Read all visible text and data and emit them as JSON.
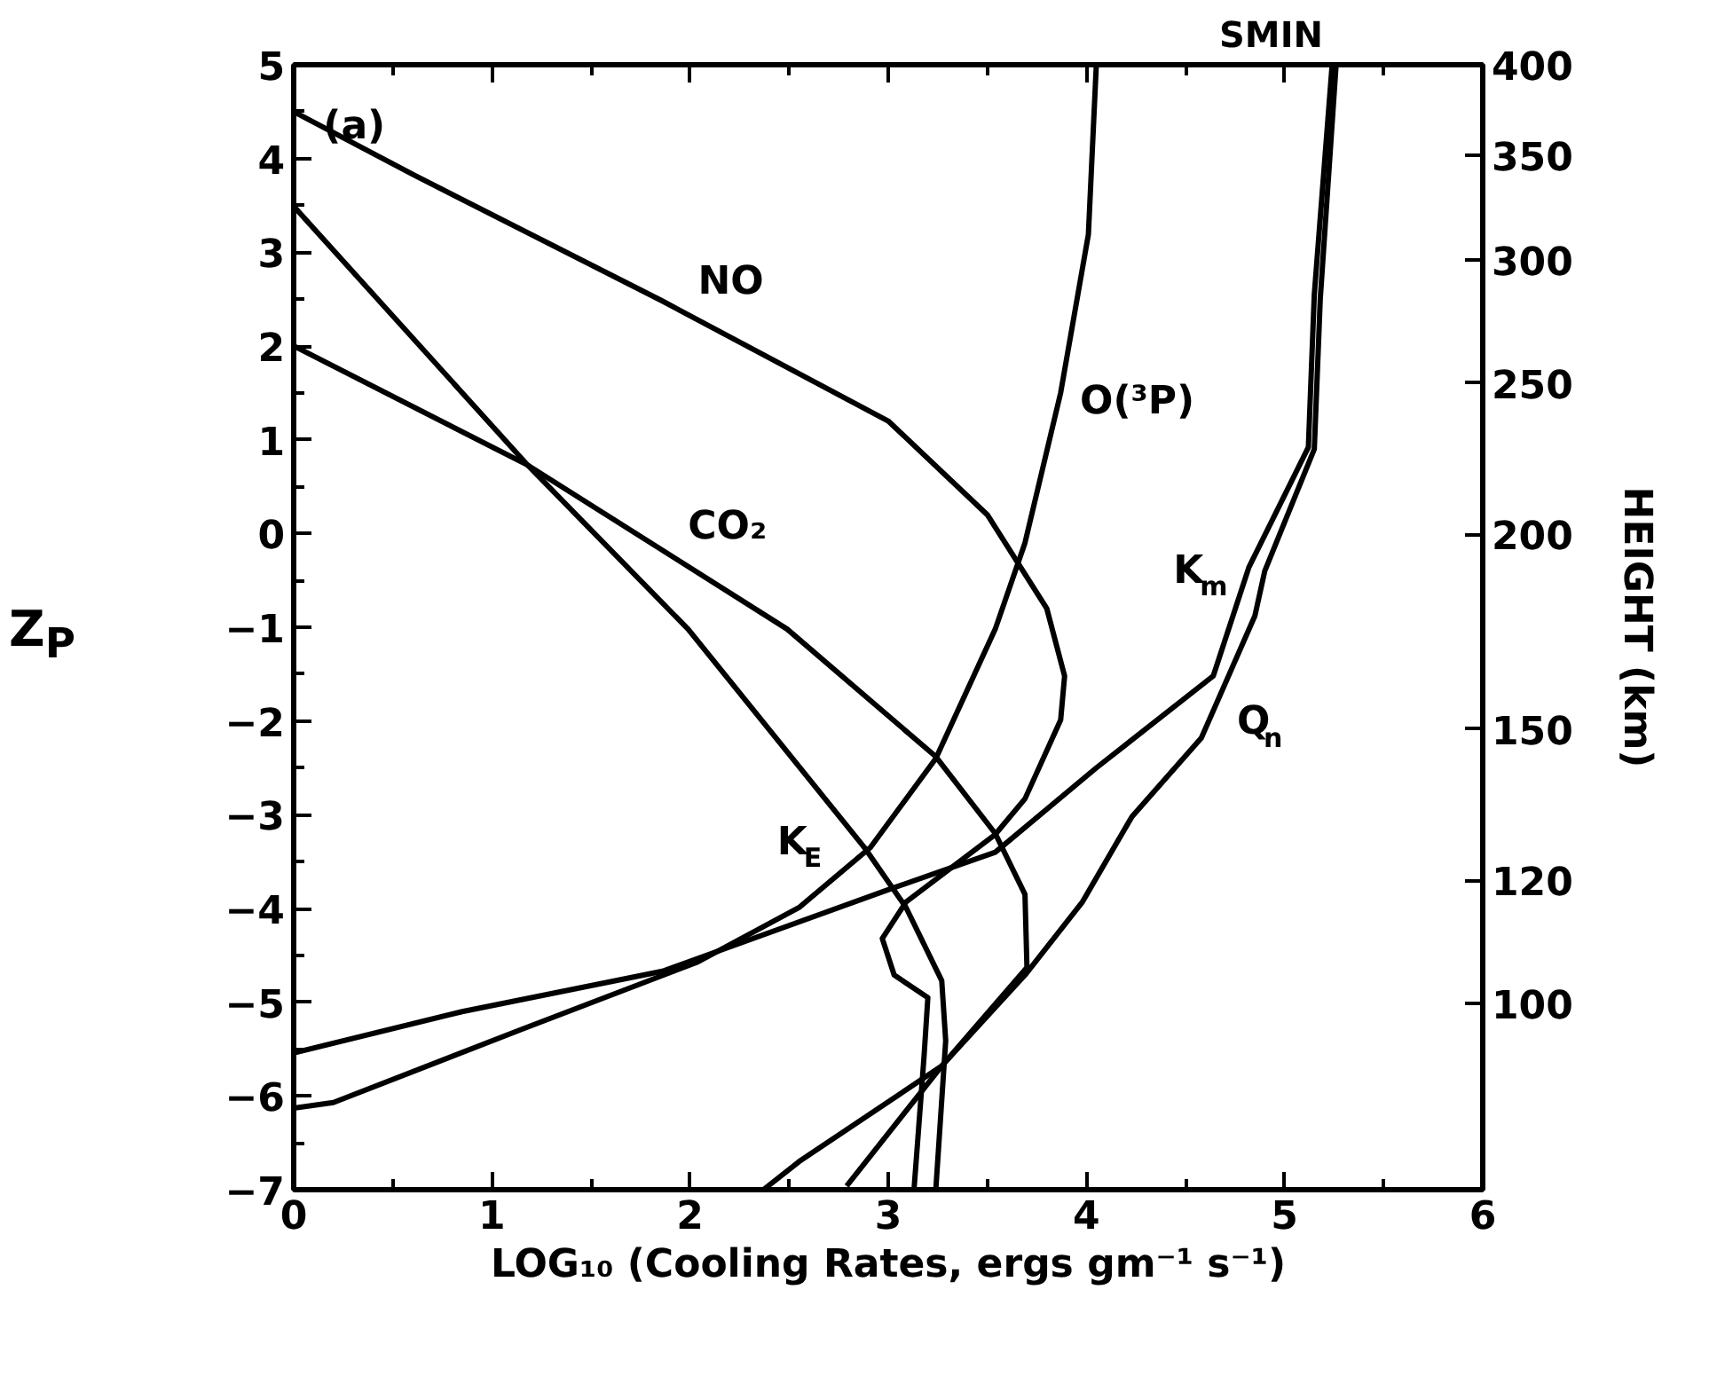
{
  "chart_data": {
    "type": "line",
    "title": "SMIN",
    "xlabel": "LOG₁₀ (Cooling Rates, ergs gm⁻¹ s⁻¹)",
    "ylabel": "Z$_{P}$",
    "y2label": "HEIGHT (km)",
    "xlim": [
      0,
      6
    ],
    "xticks": [
      0,
      1,
      2,
      3,
      4,
      5,
      6
    ],
    "ylim": [
      -7,
      5
    ],
    "yticks": [
      -7,
      -6,
      -5,
      -4,
      -3,
      -2,
      -1,
      0,
      1,
      2,
      3,
      4,
      5
    ],
    "y2lim": [
      76,
      400
    ],
    "y2ticks": [
      100,
      120,
      150,
      200,
      250,
      300,
      350,
      400
    ],
    "log": "y2",
    "grid": false,
    "marker": "none",
    "line_style": "solid",
    "series": [
      {
        "color": "#000000",
        "x": [
          0,
          0.61,
          1.86,
          3.0,
          3.5,
          3.8,
          3.89,
          3.87,
          3.69,
          3.54,
          3.09,
          2.97,
          3.03,
          3.2,
          3.18,
          3.13
        ],
        "values": [
          4.5,
          3.82,
          2.48,
          1.2,
          0.2,
          -0.8,
          -1.52,
          -1.99,
          -2.83,
          -3.21,
          -3.93,
          -4.32,
          -4.71,
          -4.95,
          -5.6,
          -7
        ]
      },
      {
        "color": "#000000",
        "x": [
          0,
          1.18,
          2.49,
          3.24,
          3.54,
          3.69,
          3.7,
          3.27,
          2.55,
          2.37
        ],
        "values": [
          2.0,
          0.73,
          -1.02,
          -2.38,
          -3.2,
          -3.85,
          -4.63,
          -5.68,
          -6.7,
          -7
        ]
      },
      {
        "color": "#000000",
        "x": [
          4.05,
          4.01,
          3.87,
          3.69,
          3.54,
          3.24,
          2.91,
          2.55,
          2.04,
          1.15,
          0.2,
          0
        ],
        "values": [
          5,
          3.19,
          1.5,
          -0.1,
          -1.02,
          -2.4,
          -3.35,
          -3.99,
          -4.57,
          -5.29,
          -6.07,
          -6.13
        ]
      },
      {
        "color": "#000000",
        "x": [
          0,
          1.18,
          1.99,
          2.88,
          3.09,
          3.27,
          3.29,
          3.24
        ],
        "values": [
          3.49,
          0.73,
          -1.02,
          -3.35,
          -3.99,
          -4.77,
          -5.41,
          -7
        ]
      },
      {
        "color": "#000000",
        "x": [
          5.24,
          5.15,
          5.12,
          4.82,
          4.64,
          4.05,
          3.54,
          3.0,
          1.86,
          0.85,
          0
        ],
        "values": [
          5,
          2.55,
          0.92,
          -0.36,
          -1.52,
          -2.5,
          -3.4,
          -3.8,
          -4.67,
          -5.1,
          -5.54
        ]
      },
      {
        "color": "#000000",
        "x": [
          5.26,
          5.18,
          5.15,
          4.9,
          4.85,
          4.58,
          4.23,
          3.98,
          3.69,
          3.27,
          2.79
        ],
        "values": [
          5,
          2.5,
          0.9,
          -0.4,
          -0.88,
          -2.18,
          -3.02,
          -3.93,
          -4.71,
          -5.68,
          -6.96
        ]
      }
    ],
    "annotations": [
      {
        "text": "(a)",
        "x": 0.35,
        "y": 4.11
      },
      {
        "text": "NO",
        "x": 1.95,
        "y": 2.38
      },
      {
        "text": "CO₂",
        "x": 1.9,
        "y": -0.23
      },
      {
        "text": "O(³P)",
        "x": 3.86,
        "y": 1.4
      },
      {
        "text": "K$_{E}$",
        "x": 2.9,
        "y": -3.41
      },
      {
        "text": "K$_{m}$",
        "x": 4.81,
        "y": -0.4
      },
      {
        "text": "Q$_{n}$",
        "x": 4.67,
        "y": -1.75
      }
    ]
  }
}
